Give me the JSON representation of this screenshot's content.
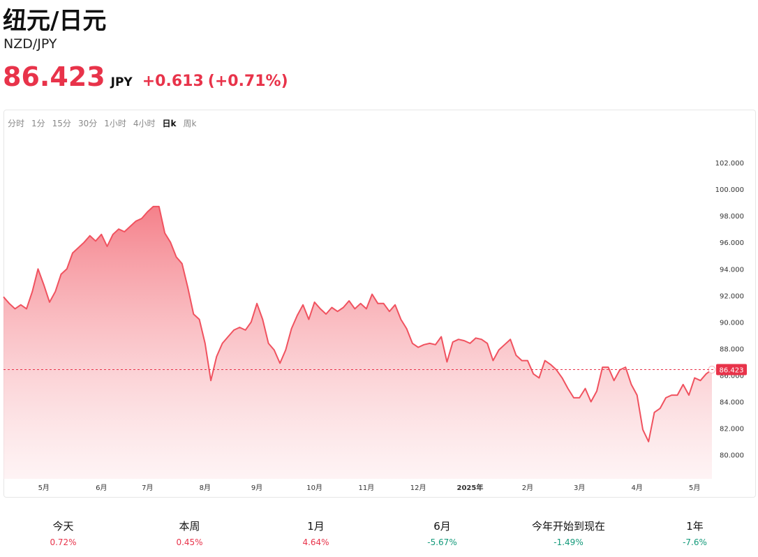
{
  "header": {
    "title": "纽元/日元",
    "symbol": "NZD/JPY",
    "price": "86.423",
    "currency": "JPY",
    "change": "+0.613",
    "change_pct": "(+0.71%)"
  },
  "tabs": {
    "items": [
      "分时",
      "1分",
      "15分",
      "30分",
      "1小时",
      "4小时",
      "日k",
      "周k"
    ],
    "active": 6
  },
  "chart_data": {
    "type": "line",
    "color": "#f0525f",
    "categories": [
      null,
      null,
      null,
      null,
      null,
      null,
      null,
      "5月",
      null,
      null,
      null,
      null,
      null,
      null,
      null,
      null,
      null,
      "6月",
      null,
      null,
      null,
      null,
      null,
      null,
      null,
      "7月",
      null,
      null,
      null,
      null,
      null,
      null,
      null,
      null,
      null,
      "8月",
      null,
      null,
      null,
      null,
      null,
      null,
      null,
      null,
      "9月",
      null,
      null,
      null,
      null,
      null,
      null,
      null,
      null,
      null,
      "10月",
      null,
      null,
      null,
      null,
      null,
      null,
      null,
      null,
      "11月",
      null,
      null,
      null,
      null,
      null,
      null,
      null,
      null,
      "12月",
      null,
      null,
      null,
      null,
      null,
      null,
      null,
      null,
      "2025年",
      null,
      null,
      null,
      null,
      null,
      null,
      null,
      null,
      null,
      "2月",
      null,
      null,
      null,
      null,
      null,
      null,
      null,
      null,
      "3月",
      null,
      null,
      null,
      null,
      null,
      null,
      null,
      null,
      null,
      "4月",
      null,
      null,
      null,
      null,
      null,
      null,
      null,
      null,
      null,
      "5月",
      null,
      null,
      null
    ],
    "values": [
      91.9,
      91.4,
      91.0,
      91.3,
      91.0,
      92.3,
      94.0,
      92.8,
      91.5,
      92.3,
      93.6,
      94.0,
      95.2,
      95.6,
      96.0,
      96.5,
      96.1,
      96.6,
      95.7,
      96.6,
      97.0,
      96.8,
      97.2,
      97.6,
      97.8,
      98.3,
      98.7,
      98.7,
      96.7,
      96.0,
      94.9,
      94.4,
      92.6,
      90.6,
      90.2,
      88.4,
      85.6,
      87.4,
      88.4,
      88.9,
      89.4,
      89.6,
      89.4,
      90.0,
      91.4,
      90.2,
      88.4,
      87.9,
      86.9,
      87.9,
      89.5,
      90.5,
      91.3,
      90.2,
      91.5,
      91.0,
      90.6,
      91.1,
      90.8,
      91.1,
      91.6,
      91.0,
      91.4,
      91.0,
      92.1,
      91.4,
      91.4,
      90.8,
      91.3,
      90.2,
      89.5,
      88.4,
      88.1,
      88.3,
      88.4,
      88.3,
      88.9,
      87.0,
      88.5,
      88.7,
      88.6,
      88.4,
      88.8,
      88.7,
      88.4,
      87.1,
      87.9,
      88.3,
      88.7,
      87.5,
      87.1,
      87.1,
      86.1,
      85.8,
      87.1,
      86.8,
      86.4,
      85.8,
      85.0,
      84.3,
      84.3,
      85.0,
      84.0,
      84.8,
      86.6,
      86.6,
      85.6,
      86.4,
      86.6,
      85.3,
      84.5,
      81.9,
      81.0,
      83.2,
      83.5,
      84.3,
      84.5,
      84.5,
      85.3,
      84.5,
      85.8,
      85.6,
      86.1,
      86.423
    ],
    "ylim": [
      78.2,
      104
    ],
    "yticks": [
      {
        "value": 80,
        "label": "80.000"
      },
      {
        "value": 82,
        "label": "82.000"
      },
      {
        "value": 84,
        "label": "84.000"
      },
      {
        "value": 86,
        "label": "86.000"
      },
      {
        "value": 88,
        "label": "88.000"
      },
      {
        "value": 90,
        "label": "90.000"
      },
      {
        "value": 92,
        "label": "92.000"
      },
      {
        "value": 94,
        "label": "94.000"
      },
      {
        "value": 96,
        "label": "96.000"
      },
      {
        "value": 98,
        "label": "98.000"
      },
      {
        "value": 100,
        "label": "100.000"
      },
      {
        "value": 102,
        "label": "102.000"
      }
    ],
    "reference_line": {
      "value": 86.423,
      "label": "86.423",
      "color": "#e8334a"
    },
    "grid": false
  },
  "stats": [
    {
      "label": "今天",
      "value": "0.72%"
    },
    {
      "label": "本周",
      "value": "0.45%"
    },
    {
      "label": "1月",
      "value": "4.64%"
    },
    {
      "label": "6月",
      "value": "-5.67%"
    },
    {
      "label": "今年开始到现在",
      "value": "-1.49%"
    },
    {
      "label": "1年",
      "value": "-7.6%"
    }
  ]
}
